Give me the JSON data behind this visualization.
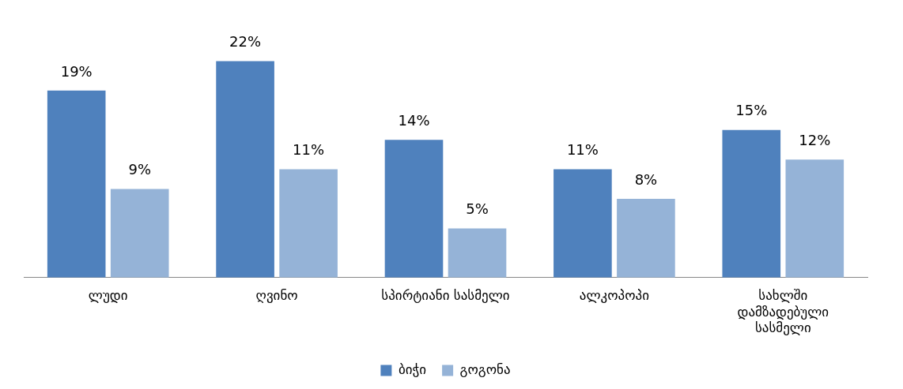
{
  "chart_data": {
    "type": "bar",
    "categories": [
      "ლუდი",
      "ღვინო",
      "სპირტიანი სასმელი",
      "ალკოპოპი",
      "სახლში დამზადებული სასმელი"
    ],
    "series": [
      {
        "name": "ბიჭი",
        "color": "#4f81bd",
        "values": [
          19,
          22,
          14,
          11,
          15
        ],
        "value_labels": [
          "19%",
          "22%",
          "14%",
          "11%",
          "15%"
        ]
      },
      {
        "name": "გოგონა",
        "color": "#95b3d7",
        "values": [
          9,
          11,
          5,
          8,
          12
        ],
        "value_labels": [
          "9%",
          "11%",
          "5%",
          "8%",
          "12%"
        ]
      }
    ],
    "legend": "bottom",
    "grid": false
  }
}
